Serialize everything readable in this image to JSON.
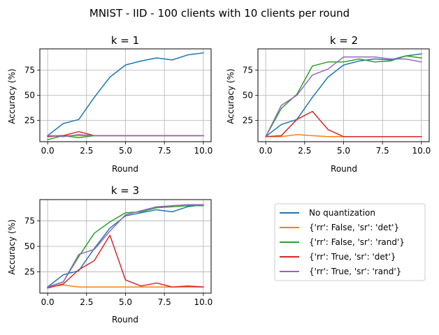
{
  "suptitle": "MNIST - IID - 100 clients with 10 clients per round",
  "legend": {
    "entries": [
      {
        "label": "No quantization",
        "color": "#1f77b4"
      },
      {
        "label": "{'rr': False, 'sr': 'det'}",
        "color": "#ff7f0e"
      },
      {
        "label": "{'rr': False, 'sr': 'rand'}",
        "color": "#2ca02c"
      },
      {
        "label": "{'rr': True, 'sr': 'det'}",
        "color": "#d62728"
      },
      {
        "label": "{'rr': True, 'sr': 'rand'}",
        "color": "#9467bd"
      }
    ]
  },
  "chart_data": [
    {
      "type": "line",
      "title": "k = 1",
      "xlabel": "Round",
      "ylabel": "Accuracy (%)",
      "xlim": [
        -0.5,
        10.5
      ],
      "ylim": [
        4,
        96
      ],
      "xticks": [
        "0.0",
        "2.5",
        "5.0",
        "7.5",
        "10.0"
      ],
      "yticks": [
        "25",
        "50",
        "75"
      ],
      "grid": true,
      "x": [
        0,
        1,
        2,
        3,
        4,
        5,
        6,
        7,
        8,
        9,
        10
      ],
      "series": [
        {
          "name": "No quantization",
          "color": "#1f77b4",
          "values": [
            10,
            22,
            26,
            48,
            68,
            80,
            84,
            87,
            85,
            90,
            92
          ]
        },
        {
          "name": "{'rr': False, 'sr': 'det'}",
          "color": "#ff7f0e",
          "values": [
            10,
            10,
            10,
            10,
            10,
            10,
            10,
            10,
            10,
            10,
            10
          ]
        },
        {
          "name": "{'rr': False, 'sr': 'rand'}",
          "color": "#2ca02c",
          "values": [
            6,
            10,
            8,
            10,
            10,
            10,
            10,
            10,
            10,
            10,
            10
          ]
        },
        {
          "name": "{'rr': True, 'sr': 'det'}",
          "color": "#d62728",
          "values": [
            9,
            10,
            14,
            10,
            10,
            10,
            10,
            10,
            10,
            10,
            10
          ]
        },
        {
          "name": "{'rr': True, 'sr': 'rand'}",
          "color": "#9467bd",
          "values": [
            10,
            9,
            11,
            10,
            10,
            10,
            10,
            10,
            10,
            10,
            10
          ]
        }
      ]
    },
    {
      "type": "line",
      "title": "k = 2",
      "xlabel": "Round",
      "ylabel": "Accuracy (%)",
      "xlim": [
        -0.5,
        10.5
      ],
      "ylim": [
        4,
        96
      ],
      "xticks": [
        "0.0",
        "2.5",
        "5.0",
        "7.5",
        "10.0"
      ],
      "yticks": [
        "25",
        "50",
        "75"
      ],
      "grid": true,
      "x": [
        0,
        1,
        2,
        3,
        4,
        5,
        6,
        7,
        8,
        9,
        10
      ],
      "series": [
        {
          "name": "No quantization",
          "color": "#1f77b4",
          "values": [
            9,
            21,
            26,
            48,
            68,
            80,
            84,
            86,
            85,
            89,
            91
          ]
        },
        {
          "name": "{'rr': False, 'sr': 'det'}",
          "color": "#ff7f0e",
          "values": [
            9,
            9,
            11,
            10,
            9,
            9,
            9,
            9,
            9,
            9,
            9
          ]
        },
        {
          "name": "{'rr': False, 'sr': 'rand'}",
          "color": "#2ca02c",
          "values": [
            9,
            37,
            51,
            79,
            83,
            83,
            86,
            83,
            84,
            89,
            87
          ]
        },
        {
          "name": "{'rr': True, 'sr': 'det'}",
          "color": "#d62728",
          "values": [
            9,
            10,
            26,
            34,
            16,
            9,
            9,
            9,
            9,
            9,
            9
          ]
        },
        {
          "name": "{'rr': True, 'sr': 'rand'}",
          "color": "#9467bd",
          "values": [
            9,
            40,
            50,
            70,
            76,
            88,
            88,
            88,
            86,
            86,
            83
          ]
        }
      ]
    },
    {
      "type": "line",
      "title": "k = 3",
      "xlabel": "Round",
      "ylabel": "Accuracy (%)",
      "xlim": [
        -0.5,
        10.5
      ],
      "ylim": [
        4,
        96
      ],
      "xticks": [
        "0.0",
        "2.5",
        "5.0",
        "7.5",
        "10.0"
      ],
      "yticks": [
        "25",
        "50",
        "75"
      ],
      "grid": true,
      "x": [
        0,
        1,
        2,
        3,
        4,
        5,
        6,
        7,
        8,
        9,
        10
      ],
      "series": [
        {
          "name": "No quantization",
          "color": "#1f77b4",
          "values": [
            10,
            22,
            26,
            48,
            68,
            80,
            83,
            86,
            84,
            89,
            91
          ]
        },
        {
          "name": "{'rr': False, 'sr': 'det'}",
          "color": "#ff7f0e",
          "values": [
            10,
            12,
            10,
            10,
            10,
            10,
            10,
            10,
            10,
            10,
            10
          ]
        },
        {
          "name": "{'rr': False, 'sr': 'rand'}",
          "color": "#2ca02c",
          "values": [
            10,
            15,
            40,
            63,
            74,
            83,
            84,
            88,
            89,
            90,
            90
          ]
        },
        {
          "name": "{'rr': True, 'sr': 'det'}",
          "color": "#d62728",
          "values": [
            9,
            13,
            27,
            36,
            61,
            17,
            11,
            14,
            10,
            11,
            10
          ]
        },
        {
          "name": "{'rr': True, 'sr': 'rand'}",
          "color": "#9467bd",
          "values": [
            10,
            15,
            42,
            47,
            65,
            81,
            85,
            89,
            90,
            91,
            91
          ]
        }
      ]
    }
  ]
}
